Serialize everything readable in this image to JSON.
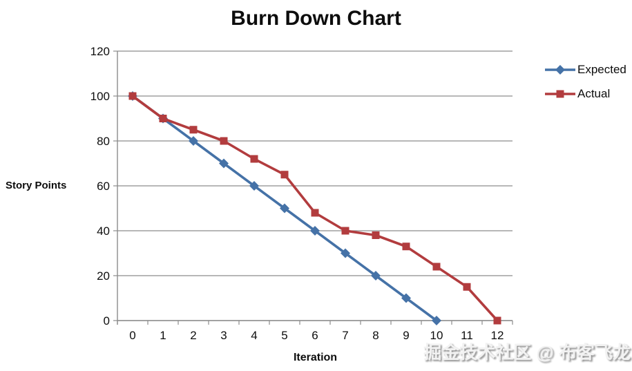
{
  "chart_data": {
    "type": "line",
    "title": "Burn Down Chart",
    "xlabel": "Iteration",
    "ylabel": "Story Points",
    "x_ticks": [
      0,
      1,
      2,
      3,
      4,
      5,
      6,
      7,
      8,
      9,
      10,
      11,
      12
    ],
    "y_ticks": [
      0,
      20,
      40,
      60,
      80,
      100,
      120
    ],
    "ylim": [
      0,
      120
    ],
    "grid": true,
    "legend_position": "right",
    "series": [
      {
        "name": "Expected",
        "color": "#4572A7",
        "marker": "diamond",
        "x": [
          0,
          1,
          2,
          3,
          4,
          5,
          6,
          7,
          8,
          9,
          10
        ],
        "values": [
          100,
          90,
          80,
          70,
          60,
          50,
          40,
          30,
          20,
          10,
          0
        ]
      },
      {
        "name": "Actual",
        "color": "#B23C3E",
        "marker": "square",
        "x": [
          0,
          1,
          2,
          3,
          4,
          5,
          6,
          7,
          8,
          9,
          10,
          11,
          12
        ],
        "values": [
          100,
          90,
          85,
          80,
          72,
          65,
          48,
          40,
          38,
          33,
          24,
          15,
          0
        ]
      }
    ]
  },
  "watermark": {
    "text": "掘金技术社区 @ 布客飞龙"
  },
  "colors": {
    "grid": "#8C8C8C",
    "axis": "#8C8C8C",
    "text": "#0d0d0d",
    "background": "#FFFFFF"
  }
}
